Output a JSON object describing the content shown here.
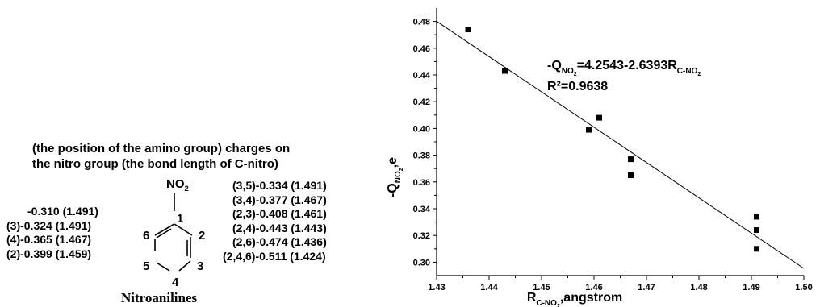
{
  "figure": {
    "header_line1": "(the position of the amino group) charges on",
    "header_line2": "the nitro group (the bond length of C-nitro)",
    "substituent": {
      "prefix": "NO",
      "sub": "2"
    },
    "ring_numbers": [
      "1",
      "2",
      "3",
      "4",
      "5",
      "6"
    ],
    "caption": "Nitroanilines",
    "left_list": [
      "-0.310 (1.491)",
      "(3)-0.324 (1.491)",
      "(4)-0.365 (1.467)",
      "(2)-0.399 (1.459)"
    ],
    "right_list": [
      "(3,5)-0.334 (1.491)",
      "(3,4)-0.377 (1.467)",
      "(2,3)-0.408 (1.461)",
      "(2,4)-0.443 (1.443)",
      "(2,6)-0.474 (1.436)",
      "(2,4,6)-0.511 (1.424)"
    ]
  },
  "chart_data": {
    "type": "scatter",
    "xlim": [
      1.43,
      1.5
    ],
    "ylim": [
      0.29,
      0.49
    ],
    "xticks": [
      "1.43",
      "1.44",
      "1.45",
      "1.46",
      "1.47",
      "1.48",
      "1.49",
      "1.50"
    ],
    "yticks": [
      "0.30",
      "0.32",
      "0.34",
      "0.36",
      "0.38",
      "0.40",
      "0.42",
      "0.44",
      "0.46",
      "0.48"
    ],
    "xlabel": {
      "prefix": "R",
      "sub": "C-NO",
      "subsub": "2",
      "suffix": ",angstrom"
    },
    "ylabel": {
      "prefix": "-Q",
      "sub": "NO",
      "subsub": "2",
      "suffix": ",e"
    },
    "equation": {
      "lhs": "-Q",
      "lhs_sub": "NO",
      "lhs_subsub": "2",
      "rhs": "=4.2543-2.6393R",
      "rhs_sub": "C-NO",
      "rhs_subsub": "2"
    },
    "r2": "R²=0.9638",
    "series": [
      {
        "points": [
          {
            "x": 1.436,
            "y": 0.474
          },
          {
            "x": 1.443,
            "y": 0.443
          },
          {
            "x": 1.459,
            "y": 0.399
          },
          {
            "x": 1.461,
            "y": 0.408
          },
          {
            "x": 1.467,
            "y": 0.377
          },
          {
            "x": 1.467,
            "y": 0.365
          },
          {
            "x": 1.491,
            "y": 0.334
          },
          {
            "x": 1.491,
            "y": 0.324
          },
          {
            "x": 1.491,
            "y": 0.31
          }
        ]
      }
    ],
    "fit_line": {
      "intercept": 4.2543,
      "slope": -2.6393
    },
    "colors": {
      "marker": "#000000",
      "line": "#000000",
      "axes": "#000000"
    }
  }
}
